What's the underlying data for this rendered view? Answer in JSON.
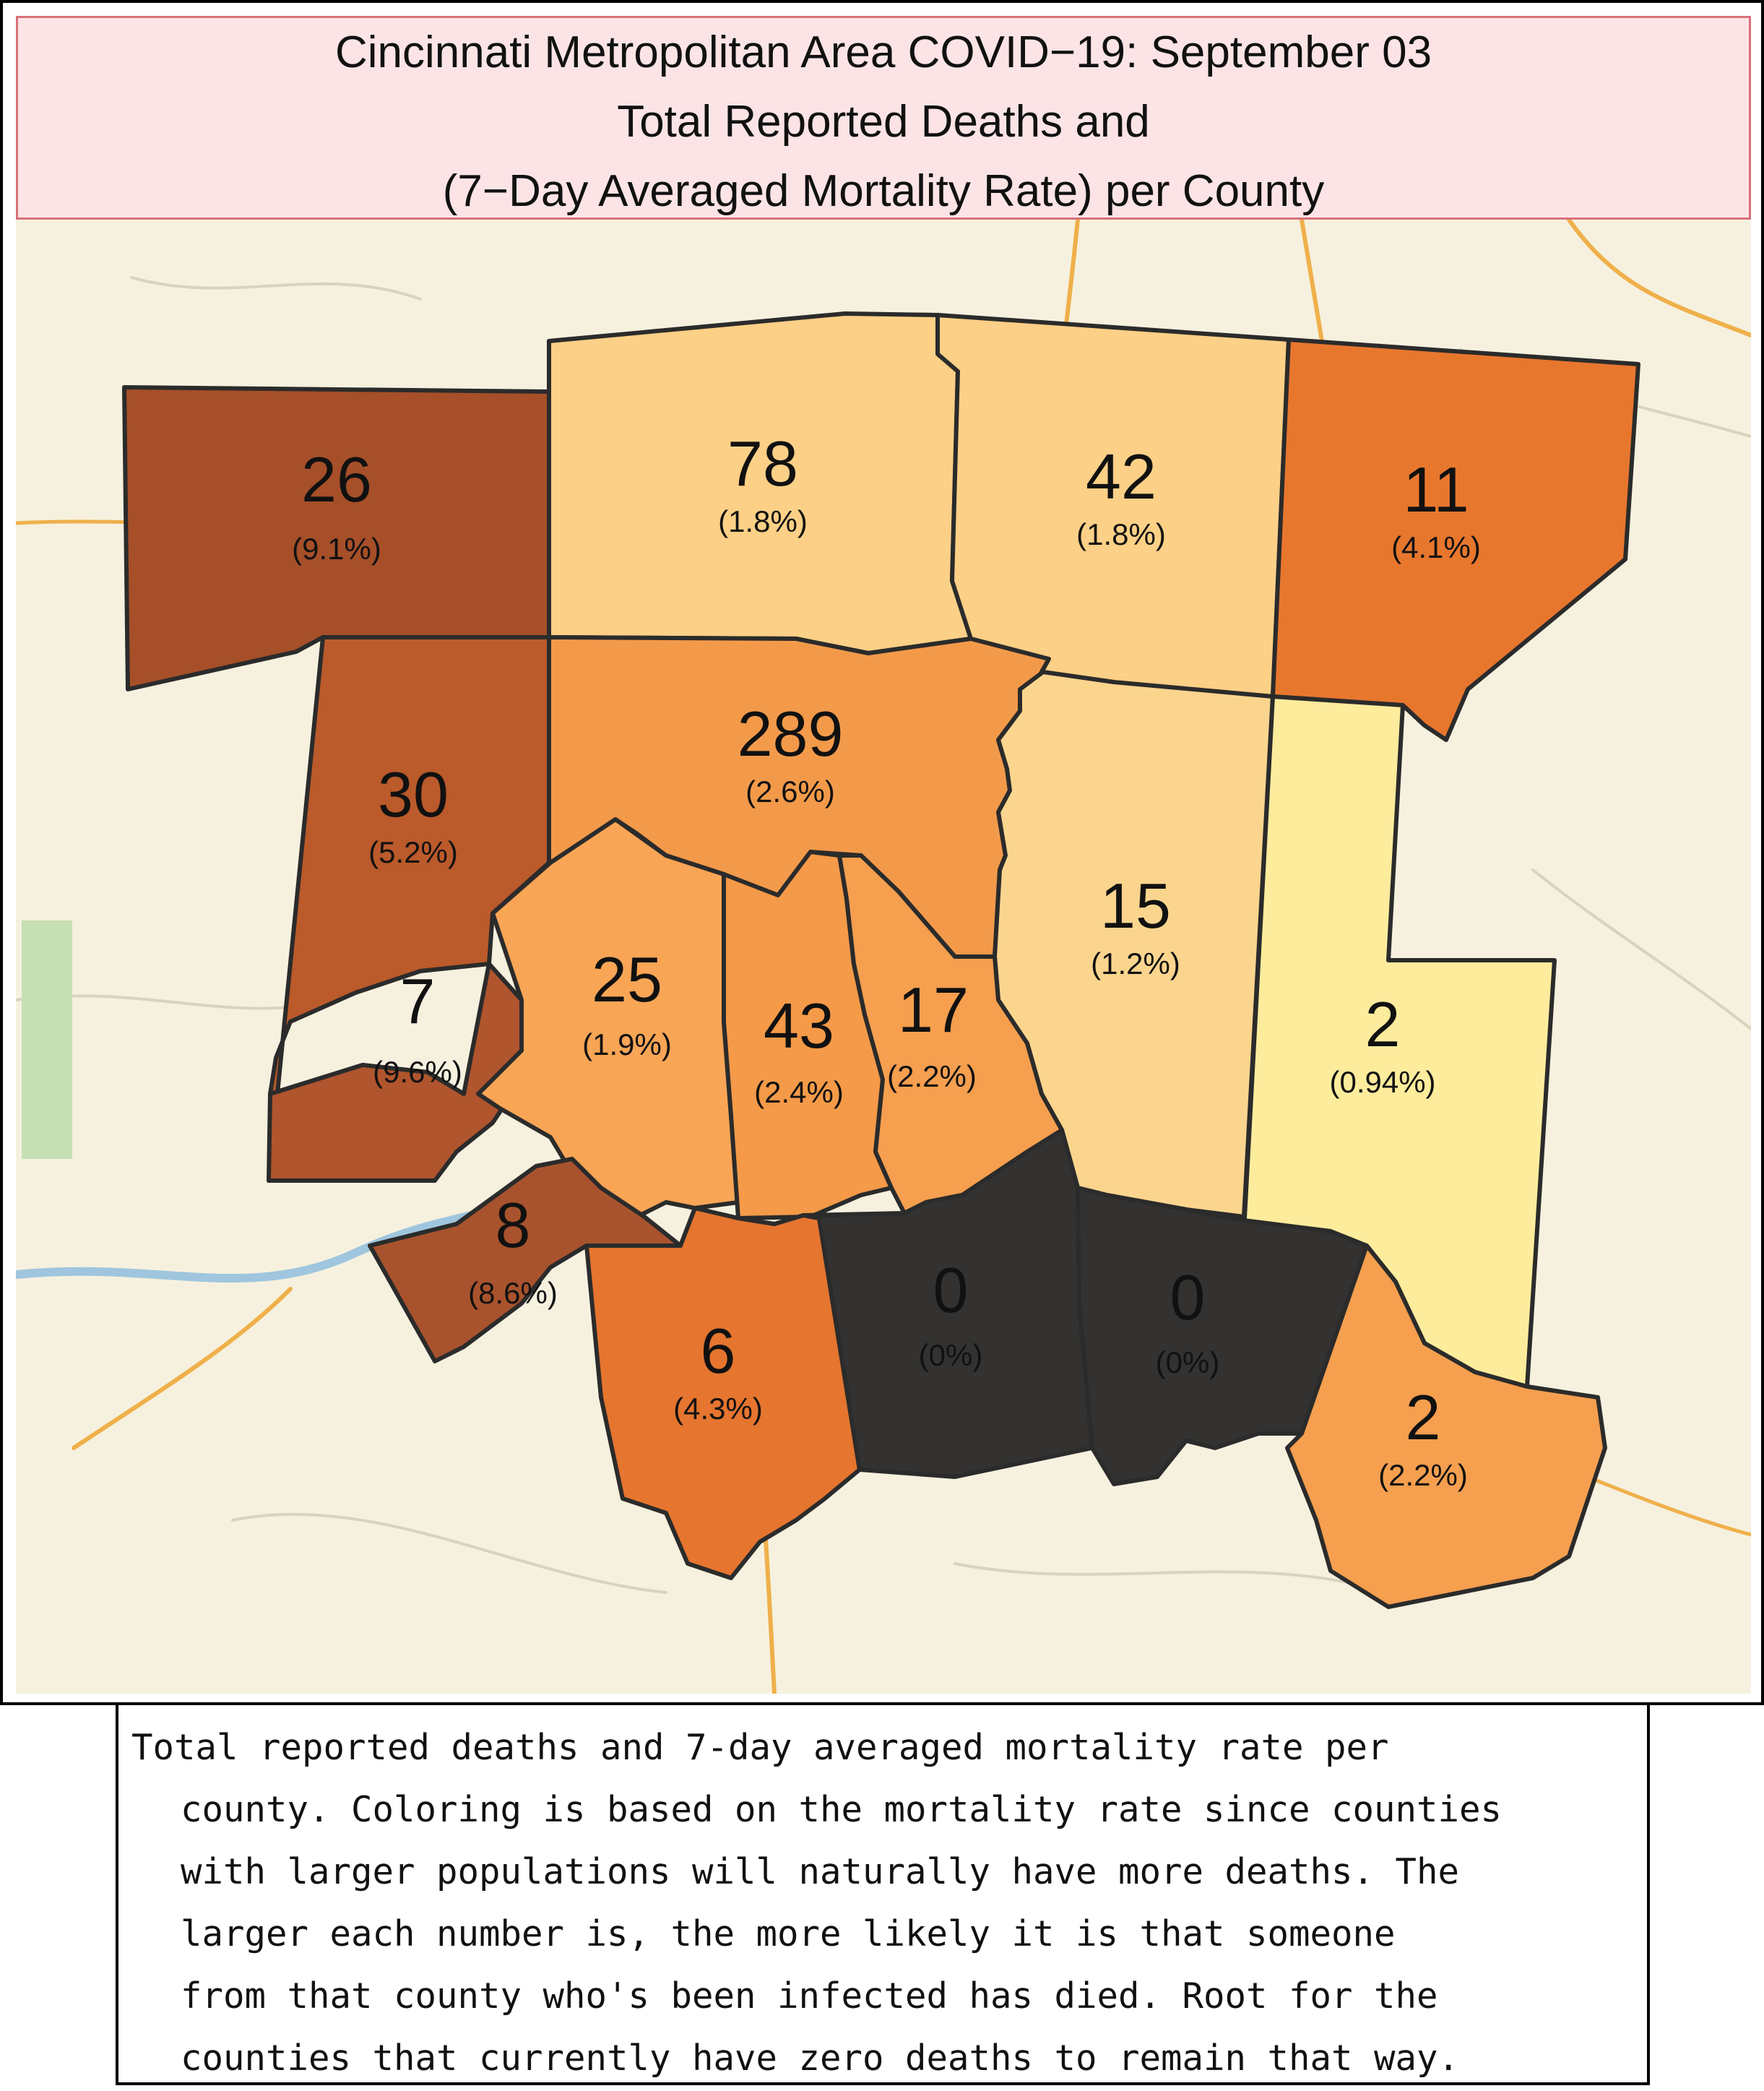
{
  "title": {
    "line1": "Cincinnati Metropolitan Area COVID−19: September 03",
    "line2": "Total Reported Deaths and",
    "line3": "(7−Day Averaged Mortality Rate) per County"
  },
  "colors": {
    "map_background": "#f6f1df",
    "roads": "#efb04a",
    "county_border": "#2b2b2b",
    "rate_scale": [
      "#fdeaa0",
      "#fcd79a",
      "#f9ae5a",
      "#f49b4b",
      "#e8772e",
      "#b1552b",
      "#2e2e2e"
    ]
  },
  "counties": [
    {
      "id": "nw",
      "deaths": "26",
      "rate": "(9.1%)",
      "color": "#a64f29"
    },
    {
      "id": "north-center",
      "deaths": "78",
      "rate": "(1.8%)",
      "color": "#fcd086"
    },
    {
      "id": "north-east",
      "deaths": "42",
      "rate": "(1.8%)",
      "color": "#fcd086"
    },
    {
      "id": "far-ne",
      "deaths": "11",
      "rate": "(4.1%)",
      "color": "#e8772e"
    },
    {
      "id": "west",
      "deaths": "30",
      "rate": "(5.2%)",
      "color": "#bb5a2b"
    },
    {
      "id": "hamilton",
      "deaths": "289",
      "rate": "(2.6%)",
      "color": "#f39a4a"
    },
    {
      "id": "east-center",
      "deaths": "15",
      "rate": "(1.2%)",
      "color": "#fbd58e"
    },
    {
      "id": "far-east",
      "deaths": "2",
      "rate": "(0.94%)",
      "color": "#fdec9c"
    },
    {
      "id": "sw-small",
      "deaths": "7",
      "rate": "(9.6%)",
      "color": "#b0552d"
    },
    {
      "id": "boone",
      "deaths": "25",
      "rate": "(1.9%)",
      "color": "#f8a556"
    },
    {
      "id": "kenton",
      "deaths": "43",
      "rate": "(2.4%)",
      "color": "#f49a48"
    },
    {
      "id": "campbell",
      "deaths": "17",
      "rate": "(2.2%)",
      "color": "#f59f4f"
    },
    {
      "id": "gallatin",
      "deaths": "8",
      "rate": "(8.6%)",
      "color": "#a8532d"
    },
    {
      "id": "grant",
      "deaths": "6",
      "rate": "(4.3%)",
      "color": "#e5752f"
    },
    {
      "id": "pendleton",
      "deaths": "0",
      "rate": "(0%)",
      "color": "#333231"
    },
    {
      "id": "bracken",
      "deaths": "0",
      "rate": "(0%)",
      "color": "#333231"
    },
    {
      "id": "se",
      "deaths": "2",
      "rate": "(2.2%)",
      "color": "#f59f4f"
    }
  ],
  "caption": [
    "Total reported deaths and 7-day averaged mortality rate per",
    "county. Coloring is based on the mortality rate since counties",
    "with larger populations will naturally have more deaths. The",
    "larger each number is, the more likely it is that someone",
    "from that county who's been infected has died. Root for the",
    "counties that currently have zero deaths to remain that way."
  ]
}
